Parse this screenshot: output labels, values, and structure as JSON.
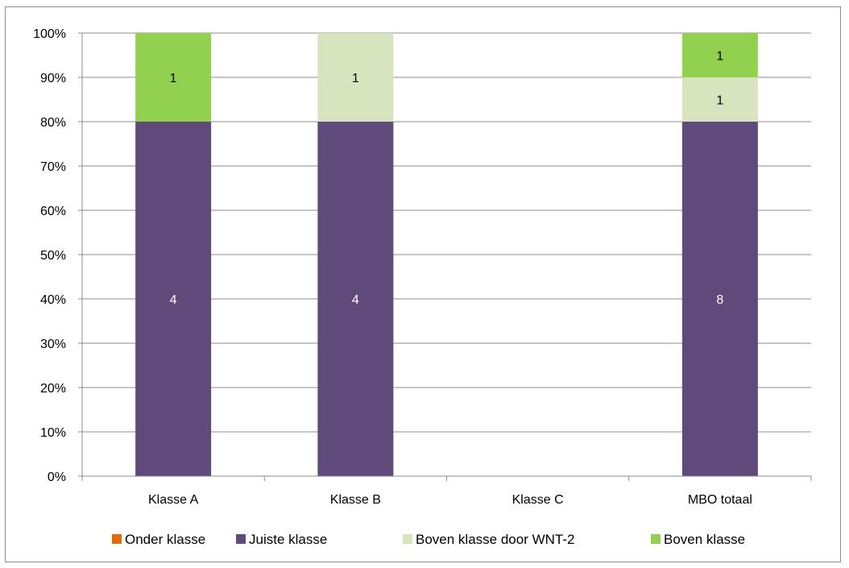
{
  "chart_data": {
    "type": "bar",
    "stacked": true,
    "normalized_percent": true,
    "categories": [
      "Klasse A",
      "Klasse B",
      "Klasse C",
      "MBO totaal"
    ],
    "series": [
      {
        "name": "Onder klasse",
        "color": "#e36c0a",
        "values": [
          0,
          0,
          0,
          0
        ]
      },
      {
        "name": "Juiste klasse",
        "color": "#604a7b",
        "values": [
          4,
          4,
          0,
          8
        ],
        "label_color": "#ffffff"
      },
      {
        "name": "Boven klasse door WNT-2",
        "color": "#d7e4bd",
        "values": [
          0,
          1,
          0,
          1
        ],
        "label_color": "#000000"
      },
      {
        "name": "Boven klasse",
        "color": "#92d050",
        "values": [
          1,
          0,
          0,
          1
        ],
        "label_color": "#000000"
      }
    ],
    "y_ticks": [
      "0%",
      "10%",
      "20%",
      "30%",
      "40%",
      "50%",
      "60%",
      "70%",
      "80%",
      "90%",
      "100%"
    ],
    "ylim": [
      0,
      100
    ],
    "grid": true,
    "legend_position": "bottom"
  }
}
